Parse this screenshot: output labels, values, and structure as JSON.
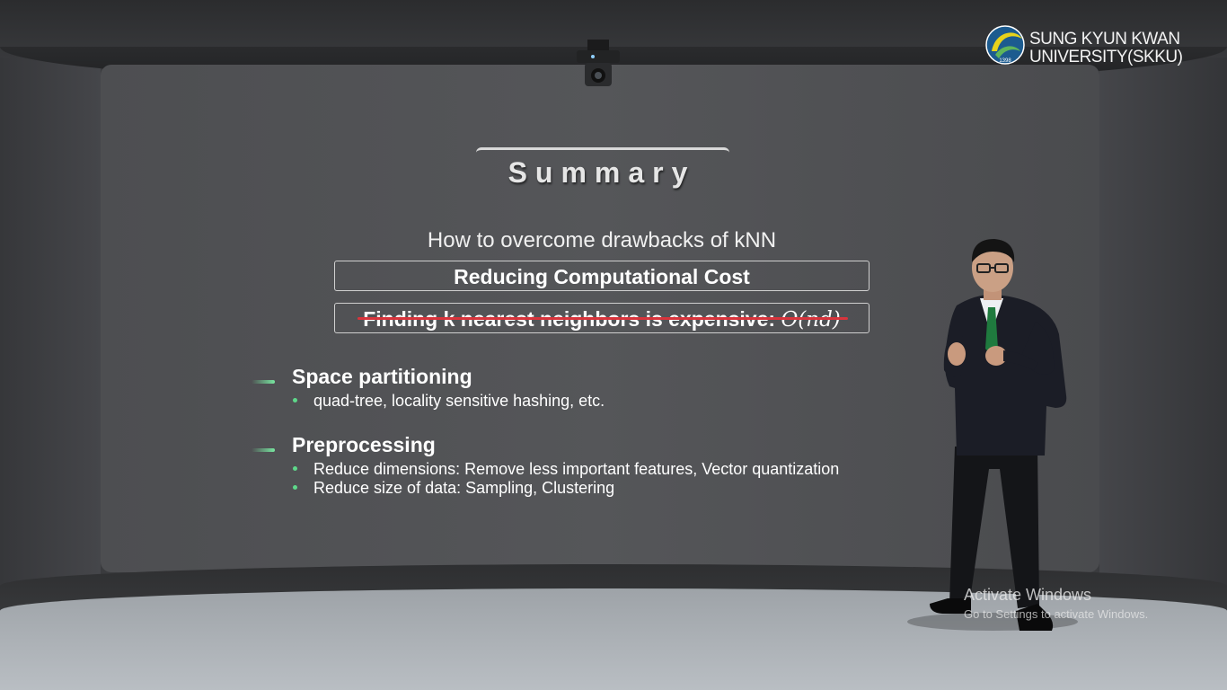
{
  "logo": {
    "year": "1398",
    "line1": "SUNG KYUN KWAN",
    "line2": "UNIVERSITY(SKKU)"
  },
  "slide": {
    "title": "Summary",
    "subtitle": "How to overcome drawbacks of kNN",
    "box_cost": "Reducing Computational Cost",
    "box_expensive": "Finding k nearest neighbors is expensive:",
    "complexity": "O(nd)",
    "sections": [
      {
        "heading": "Space partitioning",
        "bullets": [
          "quad-tree, locality sensitive hashing, etc."
        ]
      },
      {
        "heading": "Preprocessing",
        "bullets": [
          "Reduce dimensions: Remove less important features, Vector quantization",
          "Reduce size of data: Sampling, Clustering"
        ]
      }
    ]
  },
  "watermark": {
    "title": "Activate Windows",
    "subtitle": "Go to Settings to activate Windows."
  },
  "colors": {
    "accent_green": "#5ed88a",
    "strike_red": "#d8343c",
    "tie_green": "#1f7a3e"
  }
}
